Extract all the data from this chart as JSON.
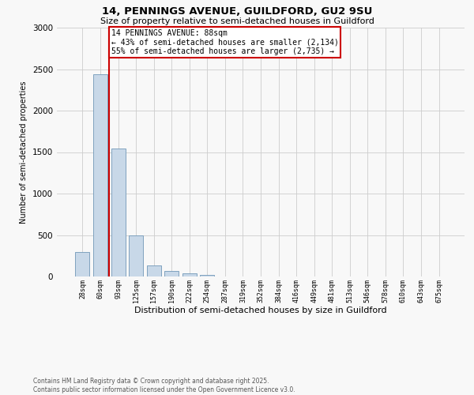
{
  "title1": "14, PENNINGS AVENUE, GUILDFORD, GU2 9SU",
  "title2": "Size of property relative to semi-detached houses in Guildford",
  "xlabel": "Distribution of semi-detached houses by size in Guildford",
  "ylabel": "Number of semi-detached properties",
  "categories": [
    "28sqm",
    "60sqm",
    "93sqm",
    "125sqm",
    "157sqm",
    "190sqm",
    "222sqm",
    "254sqm",
    "287sqm",
    "319sqm",
    "352sqm",
    "384sqm",
    "416sqm",
    "449sqm",
    "481sqm",
    "513sqm",
    "546sqm",
    "578sqm",
    "610sqm",
    "643sqm",
    "675sqm"
  ],
  "values": [
    295,
    2440,
    1545,
    500,
    130,
    65,
    35,
    20,
    0,
    0,
    0,
    0,
    0,
    0,
    0,
    0,
    0,
    0,
    0,
    0,
    0
  ],
  "bar_color": "#c8d8e8",
  "bar_edge_color": "#7098b8",
  "red_line_x": 1.5,
  "annotation_text": "14 PENNINGS AVENUE: 88sqm\n← 43% of semi-detached houses are smaller (2,134)\n55% of semi-detached houses are larger (2,735) →",
  "annotation_box_color": "#ffffff",
  "annotation_edge_color": "#cc0000",
  "red_line_color": "#cc0000",
  "footer": "Contains HM Land Registry data © Crown copyright and database right 2025.\nContains public sector information licensed under the Open Government Licence v3.0.",
  "ylim": [
    0,
    3000
  ],
  "yticks": [
    0,
    500,
    1000,
    1500,
    2000,
    2500,
    3000
  ],
  "bg_color": "#f8f8f8",
  "grid_color": "#cccccc"
}
